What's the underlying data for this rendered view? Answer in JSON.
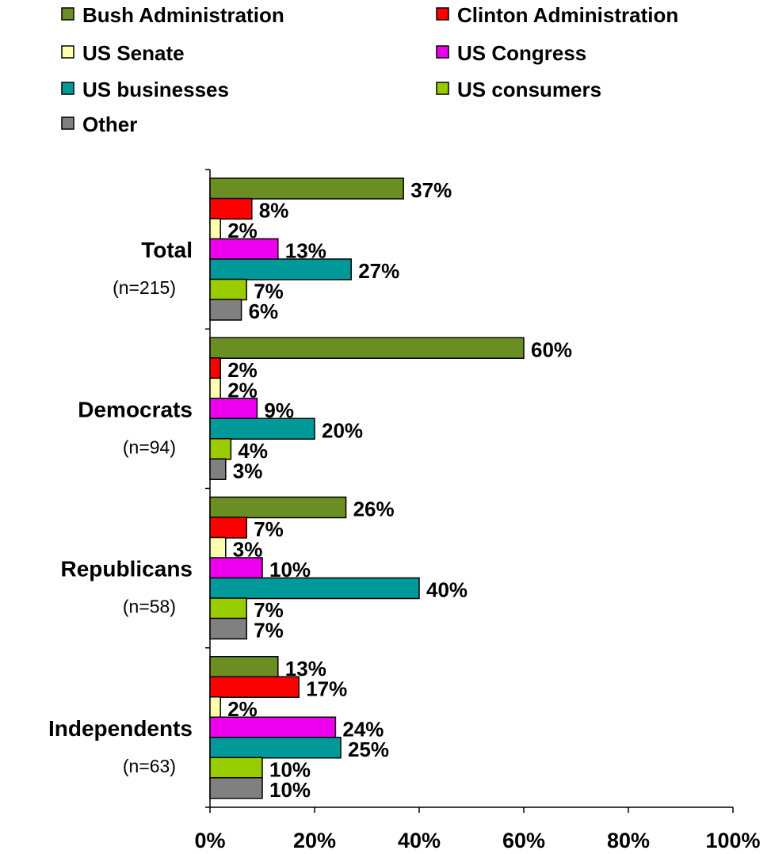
{
  "chart_data": {
    "type": "bar",
    "orientation": "horizontal",
    "legend_position": "top",
    "xlim": [
      0,
      100
    ],
    "x_ticks": [
      "0%",
      "20%",
      "40%",
      "60%",
      "80%",
      "100%"
    ],
    "categories": [
      {
        "label": "Total",
        "n": "(n=215)"
      },
      {
        "label": "Democrats",
        "n": "(n=94)"
      },
      {
        "label": "Republicans",
        "n": "(n=58)"
      },
      {
        "label": "Independents",
        "n": "(n=63)"
      }
    ],
    "series": [
      {
        "name": "Bush Administration",
        "color": "#6B8E23",
        "values": [
          37,
          60,
          26,
          13
        ]
      },
      {
        "name": "Clinton Administration",
        "color": "#FF0000",
        "values": [
          8,
          2,
          7,
          17
        ]
      },
      {
        "name": "US Senate",
        "color": "#FFFFB0",
        "values": [
          2,
          2,
          3,
          2
        ]
      },
      {
        "name": "US Congress",
        "color": "#EE00EE",
        "values": [
          13,
          9,
          10,
          24
        ]
      },
      {
        "name": "US businesses",
        "color": "#009999",
        "values": [
          27,
          20,
          40,
          25
        ]
      },
      {
        "name": "US consumers",
        "color": "#99CC00",
        "values": [
          7,
          4,
          7,
          10
        ]
      },
      {
        "name": "Other",
        "color": "#808080",
        "values": [
          6,
          3,
          7,
          10
        ]
      }
    ],
    "value_suffix": "%"
  }
}
